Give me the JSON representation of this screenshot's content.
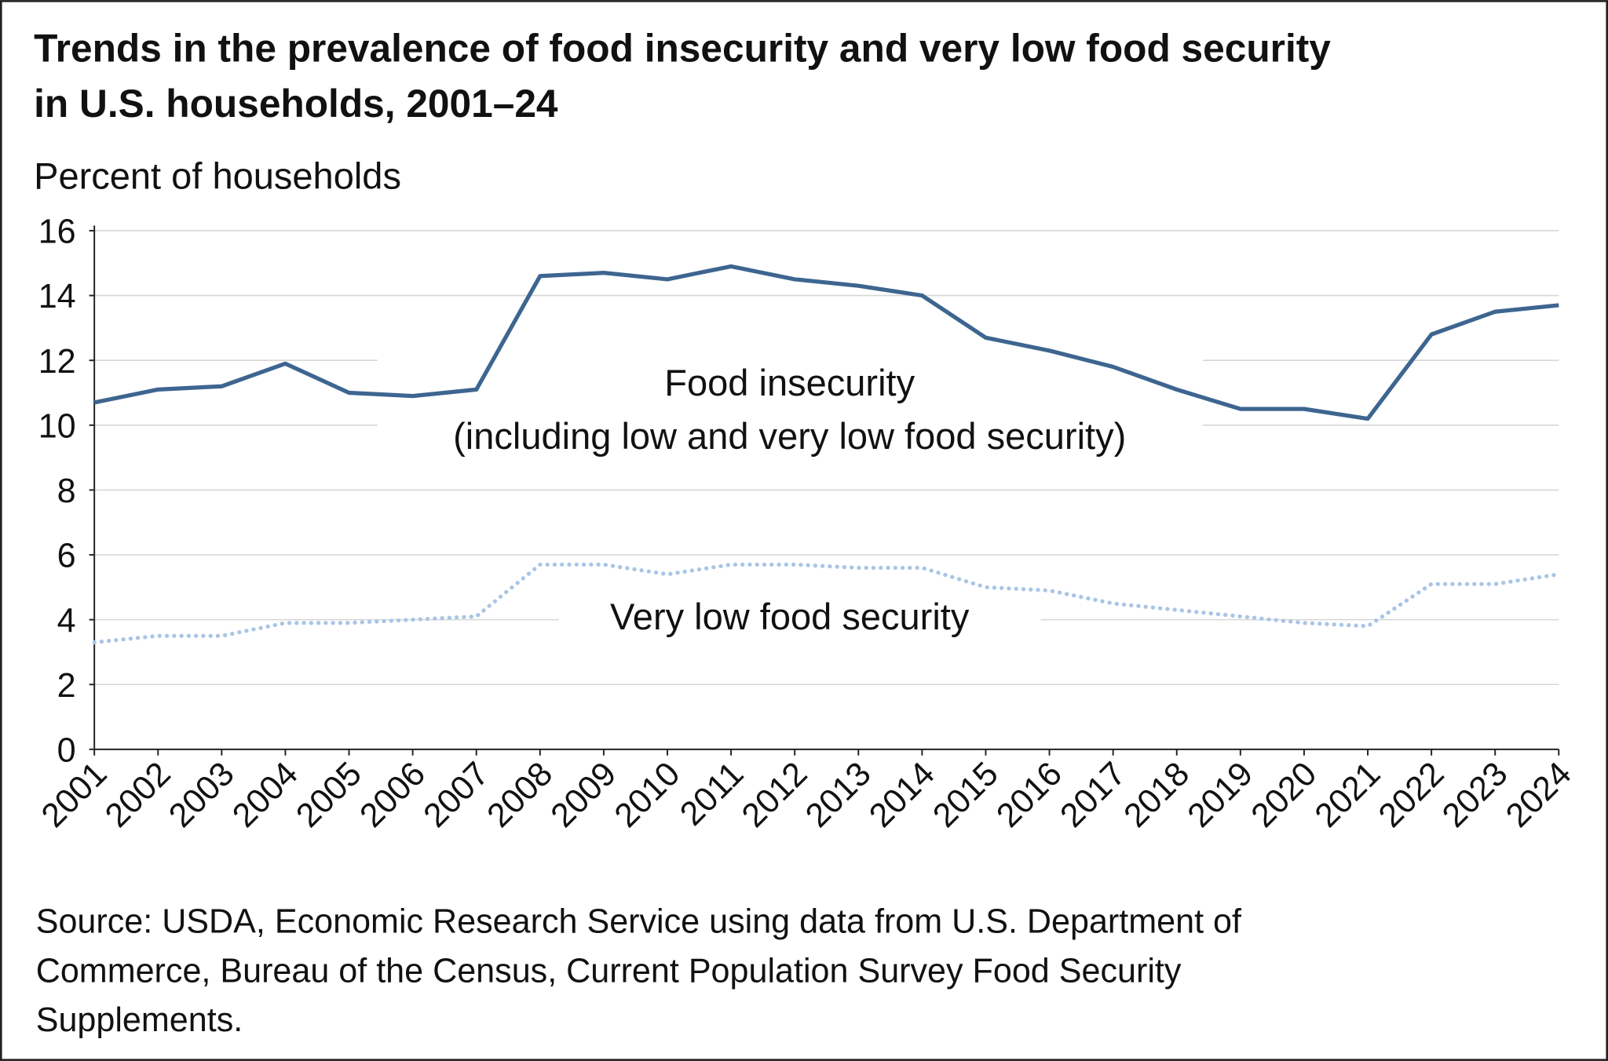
{
  "chart_data": {
    "type": "line",
    "title": [
      "Trends in the prevalence of food insecurity and very low food security",
      "in U.S. households, 2001–24"
    ],
    "y_label": "Percent of households",
    "categories": [
      "2001",
      "2002",
      "2003",
      "2004",
      "2005",
      "2006",
      "2007",
      "2008",
      "2009",
      "2010",
      "2011",
      "2012",
      "2013",
      "2014",
      "2015",
      "2016",
      "2017",
      "2018",
      "2019",
      "2020",
      "2021",
      "2022",
      "2023",
      "2024"
    ],
    "series": [
      {
        "name": "Food insecurity",
        "color": "#3d6590",
        "style": "solid",
        "values": [
          10.7,
          11.1,
          11.2,
          11.9,
          11.0,
          10.9,
          11.1,
          14.6,
          14.7,
          14.5,
          14.9,
          14.5,
          14.3,
          14.0,
          12.7,
          12.3,
          11.8,
          11.1,
          10.5,
          10.5,
          10.2,
          12.8,
          13.5,
          13.7
        ]
      },
      {
        "name": "Very low food security",
        "color": "#a8c5e6",
        "style": "dotted",
        "values": [
          3.3,
          3.5,
          3.5,
          3.9,
          3.9,
          4.0,
          4.1,
          5.7,
          5.7,
          5.4,
          5.7,
          5.7,
          5.6,
          5.6,
          5.0,
          4.9,
          4.5,
          4.3,
          4.1,
          3.9,
          3.8,
          5.1,
          5.1,
          5.4
        ]
      }
    ],
    "annotations": [
      "Food insecurity",
      "(including low and very low food security)",
      "Very low food security"
    ],
    "ylim": [
      0,
      16
    ],
    "yticks": [
      0,
      2,
      4,
      6,
      8,
      10,
      12,
      14,
      16
    ],
    "grid": true,
    "source": [
      "Source: USDA, Economic Research Service using data from U.S. Department of",
      "Commerce, Bureau of the Census, Current Population Survey Food Security",
      "Supplements."
    ]
  }
}
